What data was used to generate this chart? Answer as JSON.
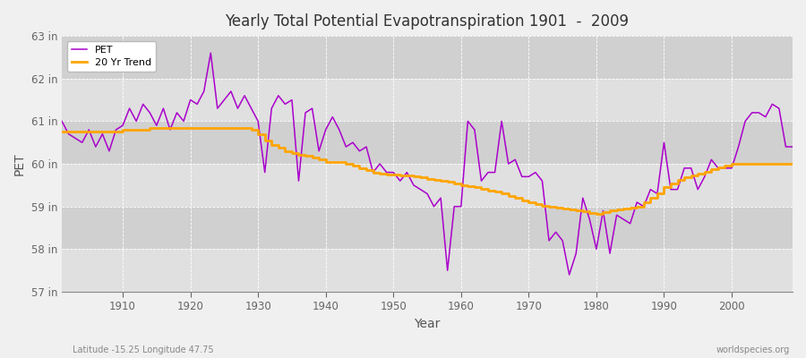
{
  "title": "Yearly Total Potential Evapotranspiration 1901  -  2009",
  "xlabel": "Year",
  "ylabel": "PET",
  "subtitle_left": "Latitude -15.25 Longitude 47.75",
  "subtitle_right": "worldspecies.org",
  "ylim": [
    57,
    63
  ],
  "yticks": [
    57,
    58,
    59,
    60,
    61,
    62,
    63
  ],
  "ytick_labels": [
    "57 in",
    "58 in",
    "59 in",
    "60 in",
    "61 in",
    "62 in",
    "63 in"
  ],
  "xlim": [
    1901,
    2009
  ],
  "xticks": [
    1910,
    1920,
    1930,
    1940,
    1950,
    1960,
    1970,
    1980,
    1990,
    2000
  ],
  "pet_color": "#aa00cc",
  "trend_color": "#ffa500",
  "background_color": "#f0f0f0",
  "plot_bg_color": "#f0f0f0",
  "band_colors": [
    "#e8e8e8",
    "#d8d8d8"
  ],
  "grid_color": "#ffffff",
  "years": [
    1901,
    1902,
    1903,
    1904,
    1905,
    1906,
    1907,
    1908,
    1909,
    1910,
    1911,
    1912,
    1913,
    1914,
    1915,
    1916,
    1917,
    1918,
    1919,
    1920,
    1921,
    1922,
    1923,
    1924,
    1925,
    1926,
    1927,
    1928,
    1929,
    1930,
    1931,
    1932,
    1933,
    1934,
    1935,
    1936,
    1937,
    1938,
    1939,
    1940,
    1941,
    1942,
    1943,
    1944,
    1945,
    1946,
    1947,
    1948,
    1949,
    1950,
    1951,
    1952,
    1953,
    1954,
    1955,
    1956,
    1957,
    1958,
    1959,
    1960,
    1961,
    1962,
    1963,
    1964,
    1965,
    1966,
    1967,
    1968,
    1969,
    1970,
    1971,
    1972,
    1973,
    1974,
    1975,
    1976,
    1977,
    1978,
    1979,
    1980,
    1981,
    1982,
    1983,
    1984,
    1985,
    1986,
    1987,
    1988,
    1989,
    1990,
    1991,
    1992,
    1993,
    1994,
    1995,
    1996,
    1997,
    1998,
    1999,
    2000,
    2001,
    2002,
    2003,
    2004,
    2005,
    2006,
    2007,
    2008,
    2009
  ],
  "pet_values": [
    61.0,
    60.7,
    60.6,
    60.5,
    60.8,
    60.4,
    60.7,
    60.3,
    60.8,
    60.9,
    61.3,
    61.0,
    61.4,
    61.2,
    60.9,
    61.3,
    60.8,
    61.2,
    61.0,
    61.5,
    61.4,
    61.7,
    62.6,
    61.3,
    61.5,
    61.7,
    61.3,
    61.6,
    61.3,
    61.0,
    59.8,
    61.3,
    61.6,
    61.4,
    61.5,
    59.6,
    61.2,
    61.3,
    60.3,
    60.8,
    61.1,
    60.8,
    60.4,
    60.5,
    60.3,
    60.4,
    59.8,
    60.0,
    59.8,
    59.8,
    59.6,
    59.8,
    59.5,
    59.4,
    59.3,
    59.0,
    59.2,
    57.5,
    59.0,
    59.0,
    61.0,
    60.8,
    59.6,
    59.8,
    59.8,
    61.0,
    60.0,
    60.1,
    59.7,
    59.7,
    59.8,
    59.6,
    58.2,
    58.4,
    58.2,
    57.4,
    57.9,
    59.2,
    58.7,
    58.0,
    58.9,
    57.9,
    58.8,
    58.7,
    58.6,
    59.1,
    59.0,
    59.4,
    59.3,
    60.5,
    59.4,
    59.4,
    59.9,
    59.9,
    59.4,
    59.7,
    60.1,
    59.9,
    59.9,
    59.9,
    60.4,
    61.0,
    61.2,
    61.2,
    61.1,
    61.4,
    61.3,
    60.4,
    60.4
  ],
  "trend_values": [
    60.75,
    60.75,
    60.75,
    60.75,
    60.75,
    60.75,
    60.75,
    60.75,
    60.75,
    60.8,
    60.8,
    60.8,
    60.8,
    60.85,
    60.85,
    60.85,
    60.85,
    60.85,
    60.85,
    60.85,
    60.85,
    60.85,
    60.85,
    60.85,
    60.85,
    60.85,
    60.85,
    60.85,
    60.8,
    60.7,
    60.55,
    60.45,
    60.38,
    60.3,
    60.25,
    60.22,
    60.18,
    60.15,
    60.1,
    60.05,
    60.05,
    60.05,
    60.0,
    59.95,
    59.9,
    59.85,
    59.8,
    59.78,
    59.75,
    59.75,
    59.73,
    59.72,
    59.7,
    59.68,
    59.65,
    59.62,
    59.6,
    59.58,
    59.55,
    59.5,
    59.47,
    59.45,
    59.42,
    59.38,
    59.35,
    59.3,
    59.25,
    59.2,
    59.15,
    59.1,
    59.05,
    59.02,
    59.0,
    58.98,
    58.95,
    58.93,
    58.9,
    58.88,
    58.85,
    58.83,
    58.87,
    58.9,
    58.93,
    58.95,
    58.97,
    59.0,
    59.1,
    59.2,
    59.3,
    59.45,
    59.55,
    59.62,
    59.68,
    59.73,
    59.77,
    59.82,
    59.87,
    59.92,
    59.96,
    60.0,
    60.0,
    60.0,
    60.0,
    60.0,
    60.0,
    60.0,
    60.0,
    60.0,
    60.0
  ]
}
